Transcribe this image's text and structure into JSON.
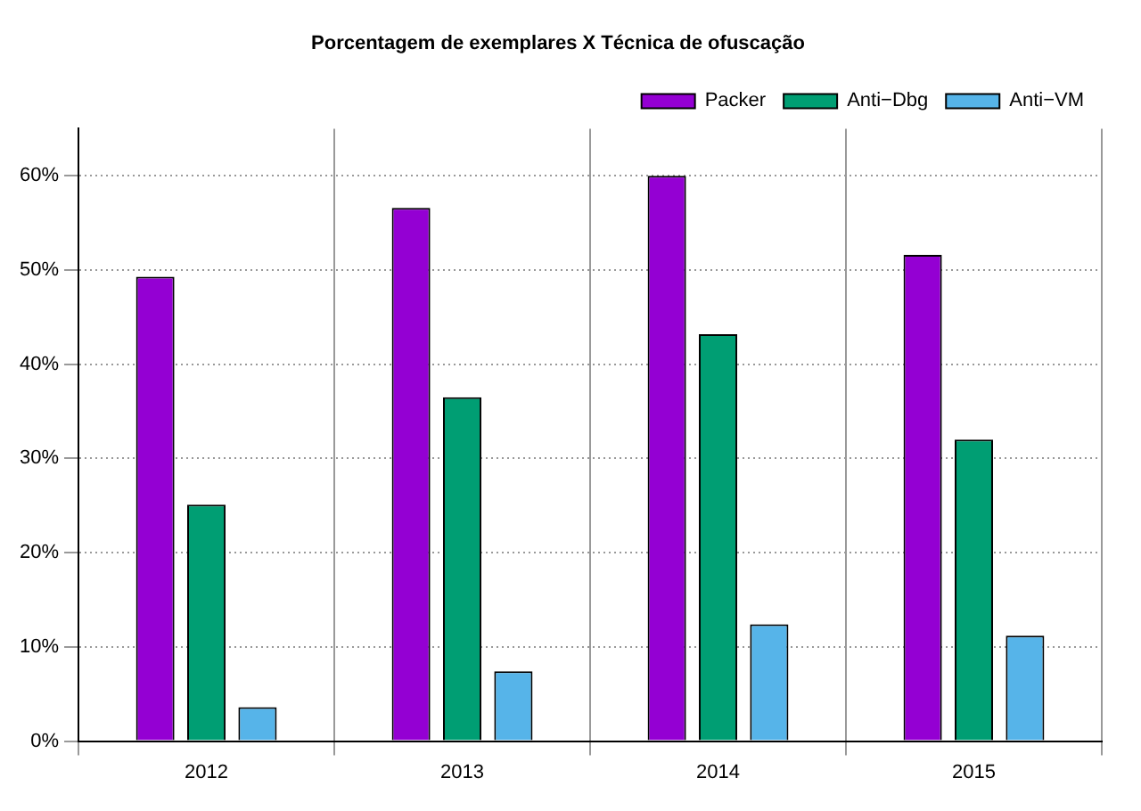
{
  "chart_data": {
    "type": "bar",
    "title": "Porcentagem de exemplares X Técnica de ofuscação",
    "categories": [
      "2012",
      "2013",
      "2014",
      "2015"
    ],
    "series": [
      {
        "name": "Packer",
        "color": "#9400d3",
        "values": [
          49.3,
          56.6,
          60.0,
          51.6
        ]
      },
      {
        "name": "Anti−Dbg",
        "color": "#009e73",
        "values": [
          25.1,
          36.5,
          43.2,
          32.0
        ]
      },
      {
        "name": "Anti−VM",
        "color": "#56b4e9",
        "values": [
          3.6,
          7.4,
          12.4,
          11.2
        ]
      }
    ],
    "ylim": [
      0,
      65
    ],
    "yticks": [
      {
        "value": 0,
        "label": "0%"
      },
      {
        "value": 10,
        "label": "10%"
      },
      {
        "value": 20,
        "label": "20%"
      },
      {
        "value": 30,
        "label": "30%"
      },
      {
        "value": 40,
        "label": "40%"
      },
      {
        "value": 50,
        "label": "50%"
      },
      {
        "value": 60,
        "label": "60%"
      }
    ],
    "grid": true,
    "legend": "top right"
  }
}
